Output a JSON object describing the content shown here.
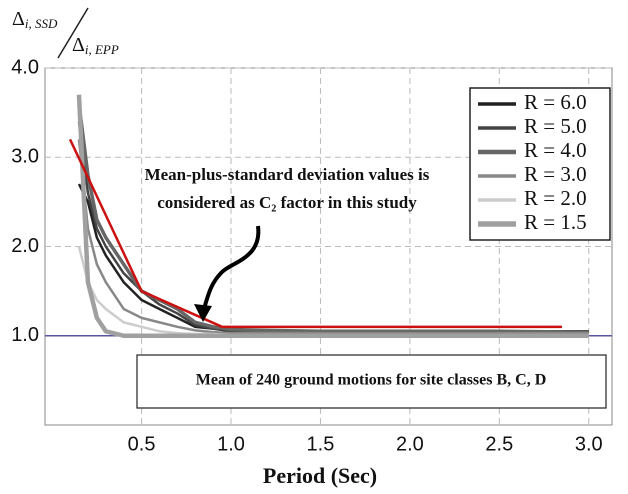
{
  "chart_data": {
    "type": "line",
    "y_label": {
      "numerator": {
        "symbol": "Δ",
        "subscript": "i, SSD"
      },
      "denominator": {
        "symbol": "Δ",
        "subscript": "i, EPP"
      }
    },
    "x_label": "Period (Sec)",
    "xlim": [
      -0.04,
      3.13
    ],
    "ylim": [
      0,
      4
    ],
    "xticks": [
      0.5,
      {
        "value": 1,
        "label": "1.0"
      },
      1.5,
      {
        "value": 2,
        "label": "2.0"
      },
      2.5,
      {
        "value": 3,
        "label": "3.0"
      }
    ],
    "yticks": [
      {
        "value": 1,
        "label": "1.0"
      },
      {
        "value": 2,
        "label": "2.0"
      },
      {
        "value": 3,
        "label": "3.0"
      },
      {
        "value": 4,
        "label": "4.0"
      }
    ],
    "grid": true,
    "legend": "upper right",
    "x": [
      0.15,
      0.2,
      0.25,
      0.3,
      0.4,
      0.5,
      0.6,
      0.7,
      0.8,
      0.9,
      1.0,
      1.2,
      1.5,
      2.0,
      2.5,
      3.0
    ],
    "series": [
      {
        "name": "R = 6.0",
        "color": "#222222",
        "values": [
          2.7,
          2.5,
          2.1,
          1.9,
          1.6,
          1.4,
          1.3,
          1.2,
          1.1,
          1.08,
          1.05,
          1.05,
          1.04,
          1.04,
          1.05,
          1.05
        ]
      },
      {
        "name": "R = 5.0",
        "color": "#444444",
        "values": [
          3.4,
          2.6,
          2.2,
          2.0,
          1.7,
          1.5,
          1.35,
          1.25,
          1.12,
          1.08,
          1.06,
          1.05,
          1.05,
          1.04,
          1.04,
          1.04
        ]
      },
      {
        "name": "R = 4.0",
        "color": "#666666",
        "values": [
          3.6,
          2.8,
          2.3,
          2.1,
          1.8,
          1.5,
          1.4,
          1.3,
          1.15,
          1.1,
          1.07,
          1.06,
          1.05,
          1.05,
          1.05,
          1.04
        ]
      },
      {
        "name": "R = 3.0",
        "color": "#888888",
        "values": [
          3.2,
          2.2,
          1.8,
          1.6,
          1.3,
          1.2,
          1.15,
          1.1,
          1.06,
          1.04,
          1.03,
          1.03,
          1.03,
          1.03,
          1.03,
          1.03
        ]
      },
      {
        "name": "R = 2.0",
        "color": "#cccccc",
        "values": [
          2.0,
          1.6,
          1.4,
          1.3,
          1.15,
          1.1,
          1.05,
          1.03,
          1.02,
          1.02,
          1.01,
          1.01,
          1.01,
          1.01,
          1.01,
          1.01
        ]
      },
      {
        "name": "R = 1.5",
        "color": "#a0a0a0",
        "values": [
          3.7,
          1.6,
          1.2,
          1.05,
          1.0,
          1.0,
          1.0,
          1.0,
          1.0,
          1.0,
          1.0,
          1.0,
          1.0,
          1.0,
          1.0,
          1.0
        ]
      }
    ],
    "envelope": {
      "color": "#cc1111",
      "x": [
        0.1,
        0.5,
        0.95,
        2.85
      ],
      "values": [
        3.2,
        1.5,
        1.1,
        1.1
      ]
    },
    "reference_line": {
      "color": "#5555aa",
      "value": 1
    },
    "annotation": [
      "Mean-plus-standard deviation values is",
      "considered as C₂ factor in this study"
    ],
    "box_text": "Mean of 240 ground motions for site classes B, C, D"
  }
}
